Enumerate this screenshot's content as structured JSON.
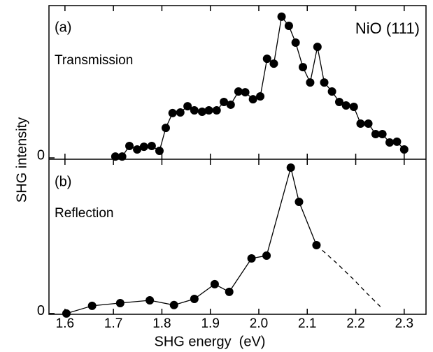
{
  "chart_data": [
    {
      "type": "line",
      "panel_label": "(a)",
      "annotation": "NiO (111)",
      "subtitle": "Transmission",
      "ylabel": "SHG intensity",
      "xlim": [
        1.567,
        2.345
      ],
      "ylim": [
        -0.9,
        100
      ],
      "yticks": [
        0
      ],
      "series": [
        {
          "color": "#000000",
          "style": "solid",
          "x": [
            1.704,
            1.718,
            1.733,
            1.749,
            1.763,
            1.779,
            1.795,
            1.808,
            1.822,
            1.838,
            1.853,
            1.867,
            1.883,
            1.897,
            1.913,
            1.928,
            1.942,
            1.958,
            1.972,
            1.988,
            2.003,
            2.017,
            2.031,
            2.047,
            2.062,
            2.076,
            2.091,
            2.106,
            2.121,
            2.135,
            2.151,
            2.166,
            2.18,
            2.196,
            2.21,
            2.226,
            2.241,
            2.255,
            2.27,
            2.285,
            2.3
          ],
          "values": [
            0.9,
            0.9,
            7.8,
            5.5,
            7.3,
            7.8,
            4.6,
            19.7,
            29.4,
            29.8,
            33.9,
            31.2,
            30.3,
            31.2,
            31.2,
            36.7,
            34.9,
            43.6,
            43.1,
            38.5,
            40.4,
            65.1,
            61.9,
            92.7,
            86.7,
            75.7,
            59.6,
            49.5,
            72.9,
            49.5,
            43.6,
            36.7,
            34.4,
            33.5,
            22.5,
            22.5,
            15.6,
            15.6,
            10.1,
            10.6,
            5.5
          ]
        }
      ]
    },
    {
      "type": "line",
      "panel_label": "(b)",
      "subtitle": "Reflection",
      "xlabel": "SHG energy  (eV)",
      "xlim": [
        1.567,
        2.345
      ],
      "ylim": [
        -0.5,
        100
      ],
      "yticks": [
        0
      ],
      "xticks": [
        1.6,
        1.7,
        1.8,
        1.9,
        {
          "value": 2,
          "label": "2.0"
        },
        2.1,
        2.2,
        2.3
      ],
      "series": [
        {
          "color": "#000000",
          "style": "solid",
          "markers": true,
          "x": [
            1.603,
            1.656,
            1.714,
            1.775,
            1.825,
            1.867,
            1.909,
            1.939,
            1.985,
            2.016,
            2.066,
            2.083,
            2.119
          ],
          "values": [
            0,
            5.0,
            6.8,
            8.6,
            5.5,
            9.5,
            19.1,
            14.1,
            35.9,
            37.7,
            95.0,
            72.7,
            44.5
          ]
        },
        {
          "color": "#000000",
          "style": "dashed",
          "markers": false,
          "x": [
            2.119,
            2.158,
            2.194,
            2.223,
            2.252
          ],
          "values": [
            44.5,
            33.6,
            22.7,
            13.2,
            4.1
          ]
        }
      ]
    }
  ]
}
